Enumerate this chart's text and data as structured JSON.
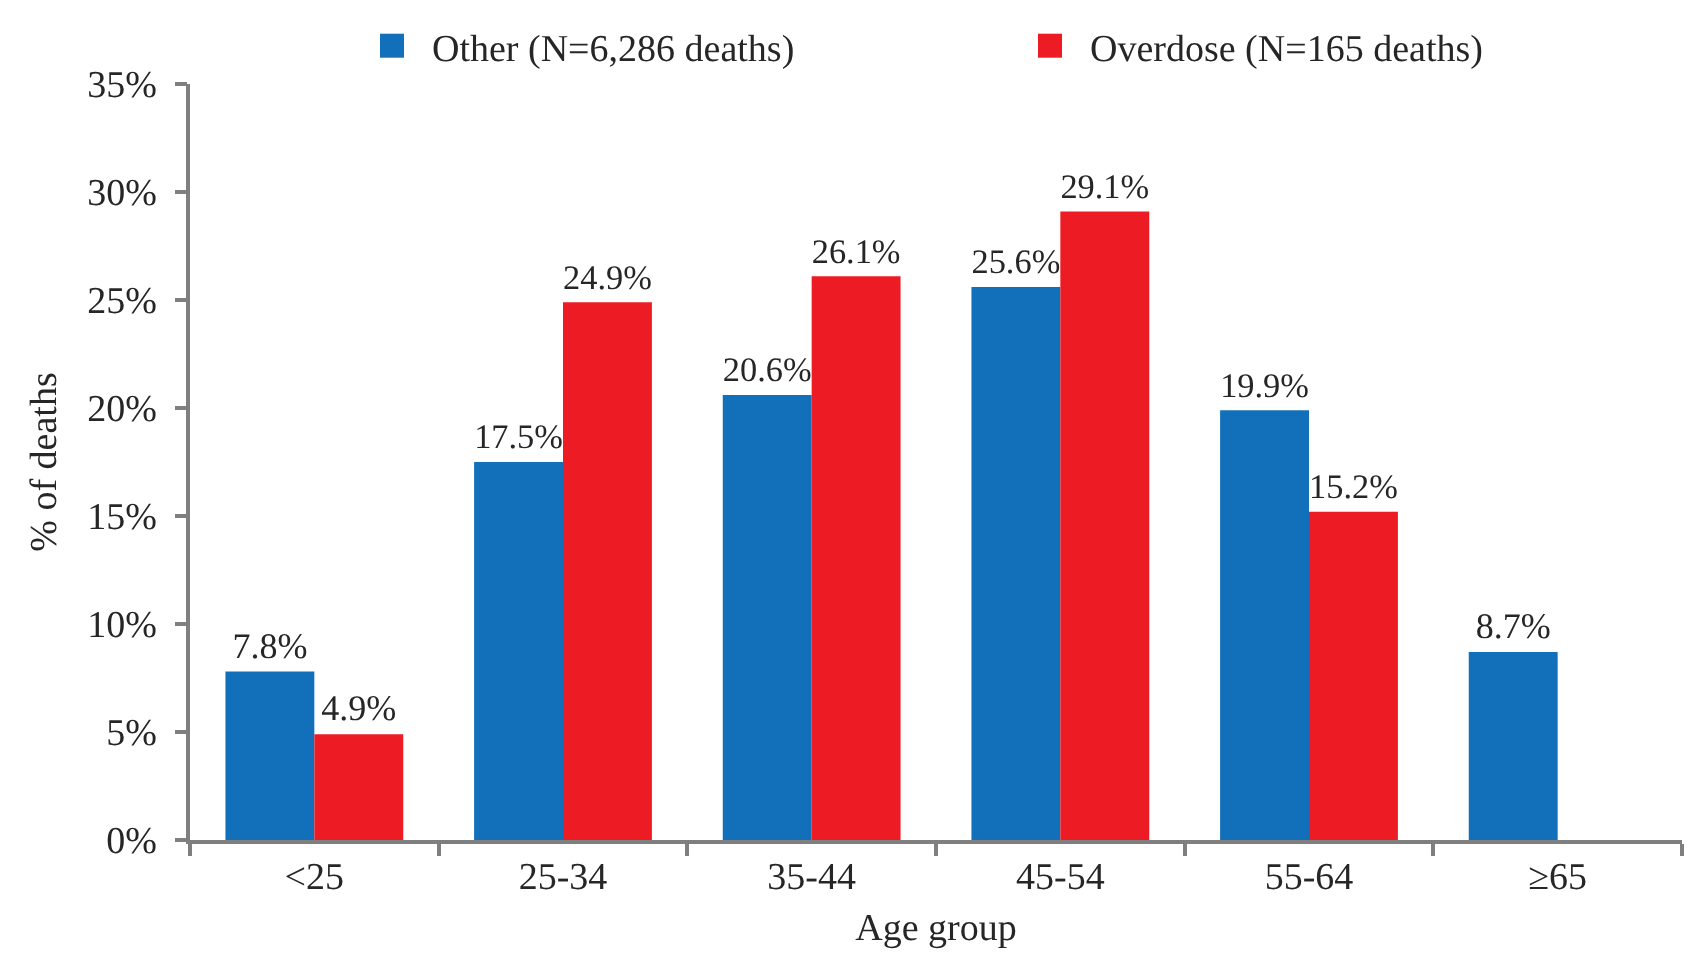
{
  "chart_data": {
    "type": "bar",
    "categories": [
      "<25",
      "25-34",
      "35-44",
      "45-54",
      "55-64",
      "≥65"
    ],
    "series": [
      {
        "name": "Other (N=6,286 deaths)",
        "color": "#1170b9",
        "values": [
          7.8,
          17.5,
          20.6,
          25.6,
          19.9,
          8.7
        ],
        "value_labels": [
          "7.8%",
          "17.5%",
          "20.6%",
          "25.6%",
          "19.9%",
          "8.7%"
        ]
      },
      {
        "name": "Overdose (N=165 deaths)",
        "color": "#ed1c24",
        "values": [
          4.9,
          24.9,
          26.1,
          29.1,
          15.2,
          null
        ],
        "value_labels": [
          "4.9%",
          "24.9%",
          "26.1%",
          "29.1%",
          "15.2%",
          null
        ]
      }
    ],
    "xlabel": "Age group",
    "ylabel": "% of deaths",
    "ylim": [
      0,
      35
    ],
    "yticks": [
      {
        "value": 0,
        "label": "0%"
      },
      {
        "value": 5,
        "label": "5%"
      },
      {
        "value": 10,
        "label": "10%"
      },
      {
        "value": 15,
        "label": "15%"
      },
      {
        "value": 20,
        "label": "20%"
      },
      {
        "value": 25,
        "label": "25%"
      },
      {
        "value": 30,
        "label": "30%"
      },
      {
        "value": 35,
        "label": "35%"
      }
    ],
    "legend": "top"
  }
}
